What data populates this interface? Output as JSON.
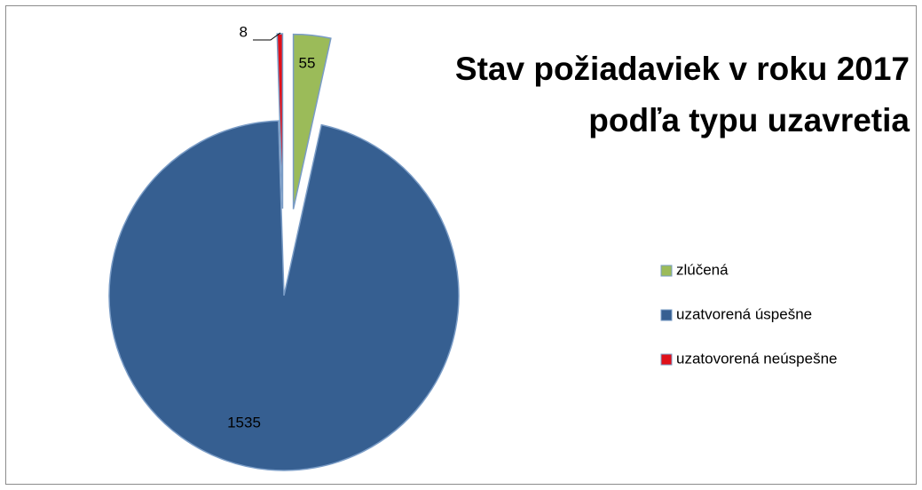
{
  "chart_data": {
    "type": "pie",
    "title": [
      "Stav požiadaviek v roku 2017",
      "podľa typu uzavretia"
    ],
    "categories": [
      "zlúčená",
      "uzatvorená úspešne",
      "uzatovorená neúspešne"
    ],
    "values": [
      55,
      1535,
      8
    ],
    "colors": [
      "#9bbb59",
      "#365f91",
      "#e0101a"
    ],
    "legend": "right"
  }
}
